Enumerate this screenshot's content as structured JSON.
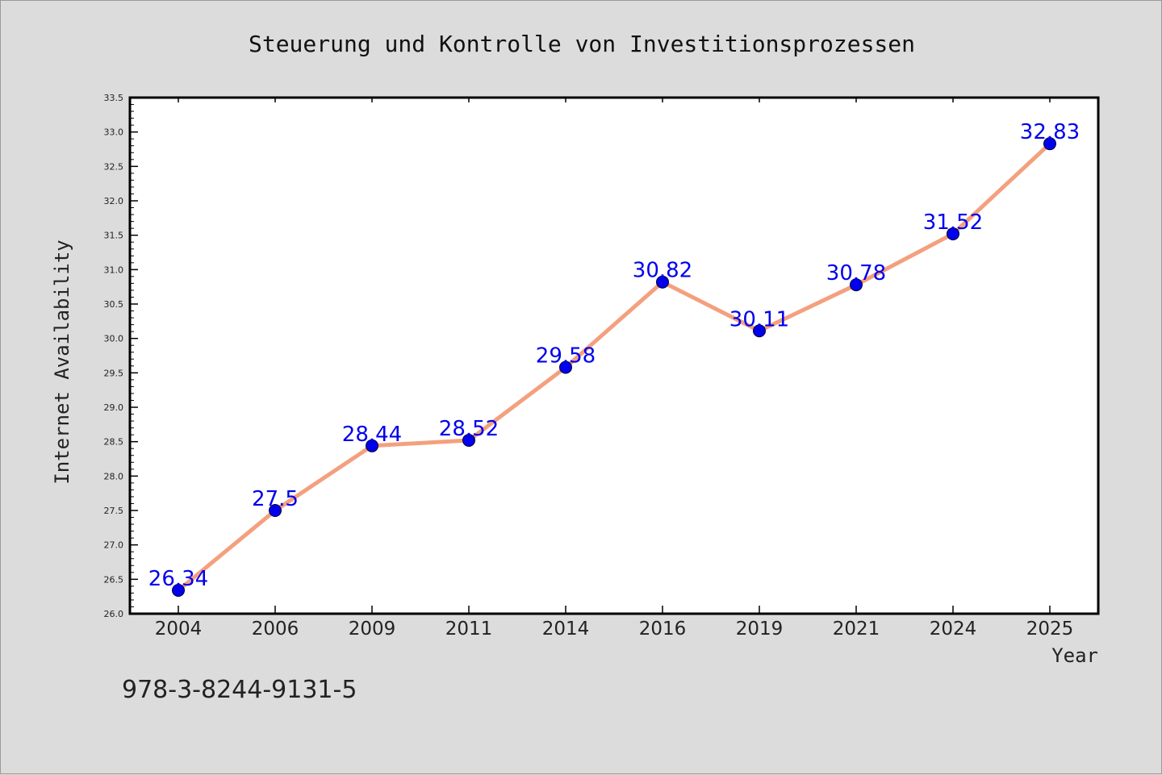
{
  "chart_data": {
    "type": "line",
    "title": "Steuerung und Kontrolle von Investitionsprozessen",
    "xlabel": "Year",
    "ylabel": "Internet Availability",
    "categories": [
      "2004",
      "2006",
      "2009",
      "2011",
      "2014",
      "2016",
      "2019",
      "2021",
      "2024",
      "2025"
    ],
    "series": [
      {
        "values": [
          26.34,
          27.5,
          28.44,
          28.52,
          29.58,
          30.82,
          30.11,
          30.78,
          31.52,
          32.83
        ],
        "labels": [
          "26.34",
          "27.5",
          "28.44",
          "28.52",
          "29.58",
          "30.82",
          "30.11",
          "30.78",
          "31.52",
          "32.83"
        ],
        "line_color": "#f4a07e",
        "marker_color": "#0000ee",
        "label_color": "#0000ee"
      }
    ],
    "ylim": [
      26.0,
      33.5
    ],
    "yticks": [
      "26.0",
      "26.5",
      "27.0",
      "27.5",
      "28.0",
      "28.5",
      "29.0",
      "29.5",
      "30.0",
      "30.5",
      "31.0",
      "31.5",
      "32.0",
      "32.5",
      "33.0",
      "33.5"
    ],
    "grid": false,
    "legend": false
  },
  "annotation": "978-3-8244-9131-5",
  "colors": {
    "background": "#dcdcdc",
    "plot_background": "#ffffff",
    "axis": "#000000"
  }
}
